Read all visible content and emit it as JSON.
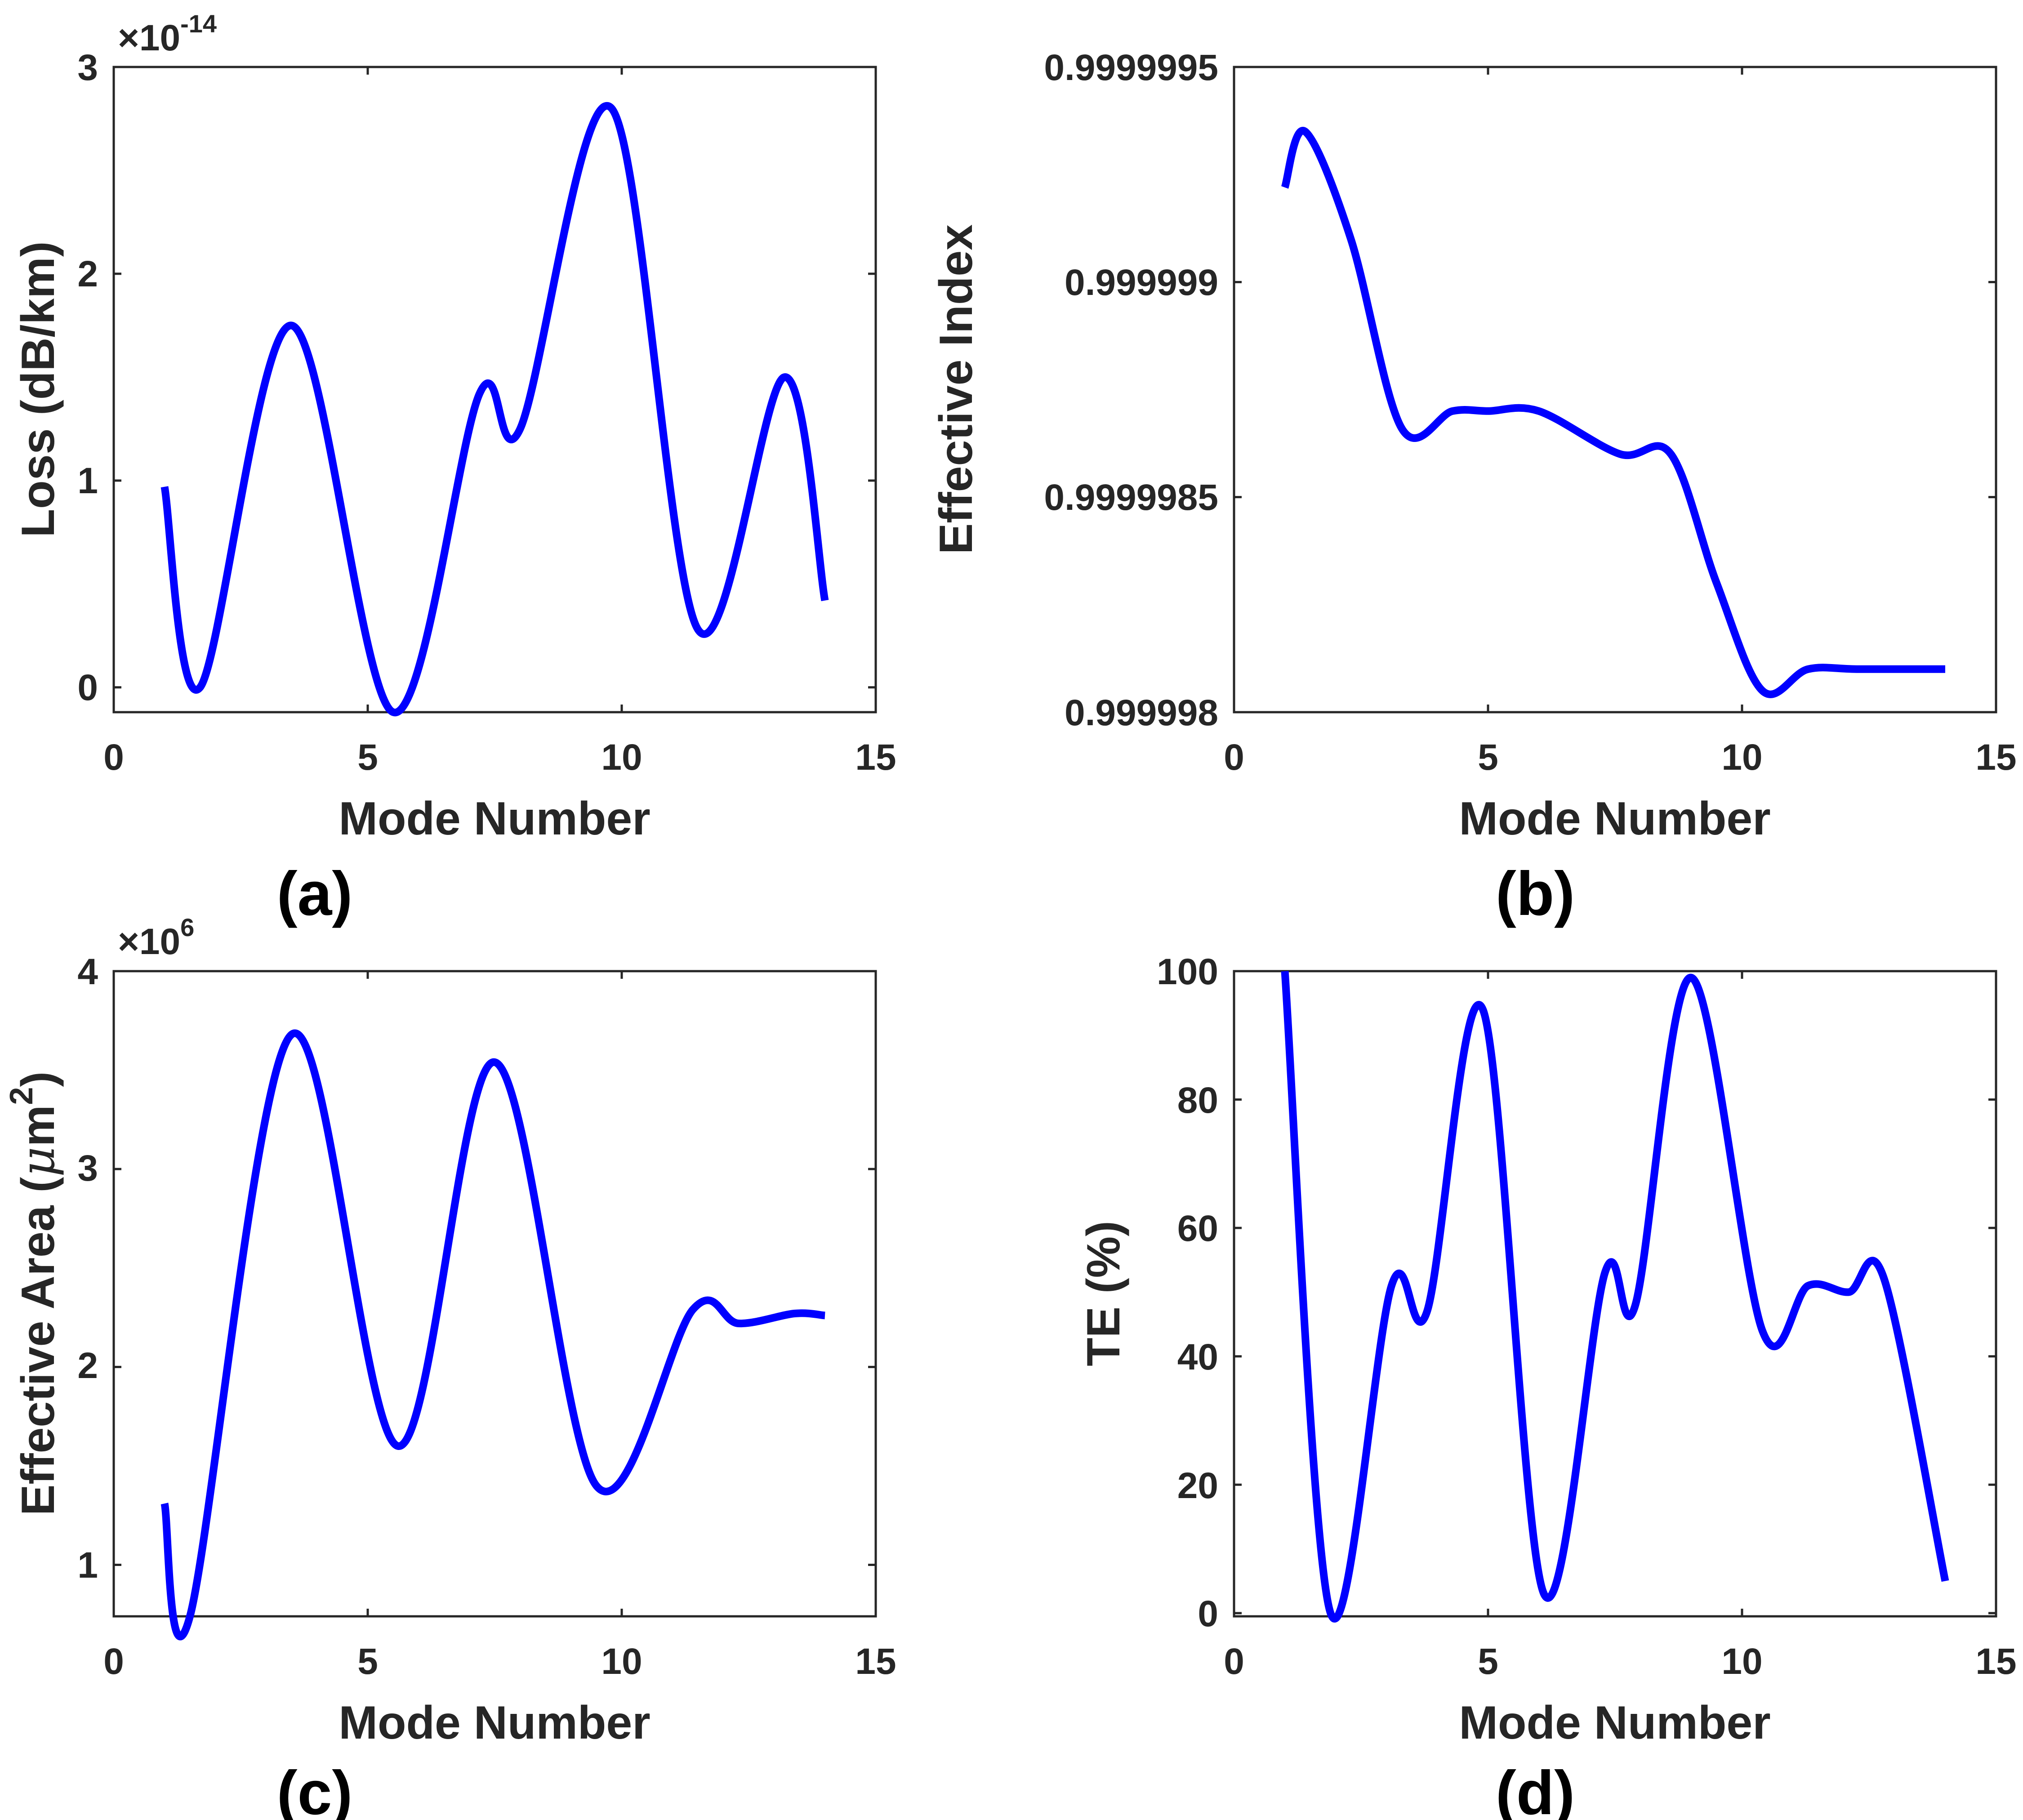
{
  "figure": {
    "series_color": "#0000ff",
    "axis_color": "#262626"
  },
  "chart_data": [
    {
      "id": "a",
      "type": "line",
      "panel_label": "(a)",
      "xlabel": "Mode Number",
      "ylabel": "Loss (dB/km)",
      "multiplier": {
        "base": "×10",
        "exponent": "-14"
      },
      "xlim": [
        0,
        15
      ],
      "ylim": [
        -0.12,
        3.0
      ],
      "xticks": [
        0,
        5,
        10,
        15
      ],
      "xtick_labels": [
        "0",
        "5",
        "10",
        "15"
      ],
      "yticks": [
        0,
        1,
        2,
        3
      ],
      "ytick_labels": [
        "0",
        "1",
        "2",
        "3"
      ],
      "grid": false,
      "series": [
        {
          "name": "Loss",
          "color": "#0000ff",
          "x": [
            1.0,
            1.7,
            3.5,
            5.5,
            7.2,
            8.0,
            9.8,
            11.5,
            13.2,
            14.0
          ],
          "y": [
            0.97,
            0.0,
            1.75,
            -0.12,
            1.42,
            1.25,
            2.8,
            0.28,
            1.5,
            0.42
          ]
        }
      ]
    },
    {
      "id": "b",
      "type": "line",
      "panel_label": "(b)",
      "xlabel": "Mode Number",
      "ylabel": "Effective Index",
      "xlim": [
        0,
        15
      ],
      "ylim": [
        0.999998,
        0.9999995
      ],
      "xticks": [
        0,
        5,
        10,
        15
      ],
      "xtick_labels": [
        "0",
        "5",
        "10",
        "15"
      ],
      "yticks": [
        0.999998,
        0.9999985,
        0.999999,
        0.9999995
      ],
      "ytick_labels": [
        "0.999998",
        "0.9999985",
        "0.999999",
        "0.9999995"
      ],
      "grid": false,
      "series": [
        {
          "name": "Effective Index",
          "color": "#0000ff",
          "x": [
            1.0,
            1.4,
            2.3,
            3.3,
            4.3,
            5.0,
            6.0,
            7.6,
            8.6,
            9.5,
            10.4,
            11.3,
            12.3,
            14.0
          ],
          "y": [
            0.99999922,
            0.99999935,
            0.9999991,
            0.99999866,
            0.9999987,
            0.9999987,
            0.9999987,
            0.9999986,
            0.9999986,
            0.9999983,
            0.99999805,
            0.9999981,
            0.9999981,
            0.9999981
          ]
        }
      ]
    },
    {
      "id": "c",
      "type": "line",
      "panel_label": "(c)",
      "xlabel": "Mode Number",
      "ylabel": "Effective Area (μm²)",
      "ylabel_parts": {
        "main": "Effective Area (",
        "mu": "μ",
        "unit": "m",
        "exponent": "2",
        "close": ")"
      },
      "multiplier": {
        "base": "×10",
        "exponent": "6"
      },
      "xlim": [
        0,
        15
      ],
      "ylim": [
        0.74,
        4.0
      ],
      "xticks": [
        0,
        5,
        10,
        15
      ],
      "xtick_labels": [
        "0",
        "5",
        "10",
        "15"
      ],
      "yticks": [
        1,
        2,
        3,
        4
      ],
      "ytick_labels": [
        "1",
        "2",
        "3",
        "4"
      ],
      "grid": false,
      "series": [
        {
          "name": "Effective Area",
          "color": "#0000ff",
          "x": [
            1.0,
            1.5,
            3.5,
            5.6,
            7.5,
            9.5,
            11.4,
            12.3,
            13.4,
            14.0
          ],
          "y": [
            1.31,
            0.74,
            3.68,
            1.6,
            3.54,
            1.4,
            2.29,
            2.22,
            2.27,
            2.26
          ]
        }
      ]
    },
    {
      "id": "d",
      "type": "line",
      "panel_label": "(d)",
      "xlabel": "Mode Number",
      "ylabel": "TE (%)",
      "xlim": [
        0,
        15
      ],
      "ylim": [
        -0.5,
        100
      ],
      "xticks": [
        0,
        5,
        10,
        15
      ],
      "xtick_labels": [
        "0",
        "5",
        "10",
        "15"
      ],
      "yticks": [
        0,
        20,
        40,
        60,
        80,
        100
      ],
      "ytick_labels": [
        "0",
        "20",
        "40",
        "60",
        "80",
        "100"
      ],
      "grid": false,
      "series": [
        {
          "name": "TE",
          "color": "#0000ff",
          "x": [
            1.0,
            1.9,
            3.1,
            3.8,
            4.9,
            6.1,
            7.3,
            7.9,
            9.0,
            10.4,
            11.3,
            12.1,
            12.8,
            14.0
          ],
          "y": [
            100,
            0,
            51,
            47,
            94,
            3,
            53,
            48,
            99,
            44,
            51,
            50,
            52,
            5
          ]
        }
      ]
    }
  ]
}
